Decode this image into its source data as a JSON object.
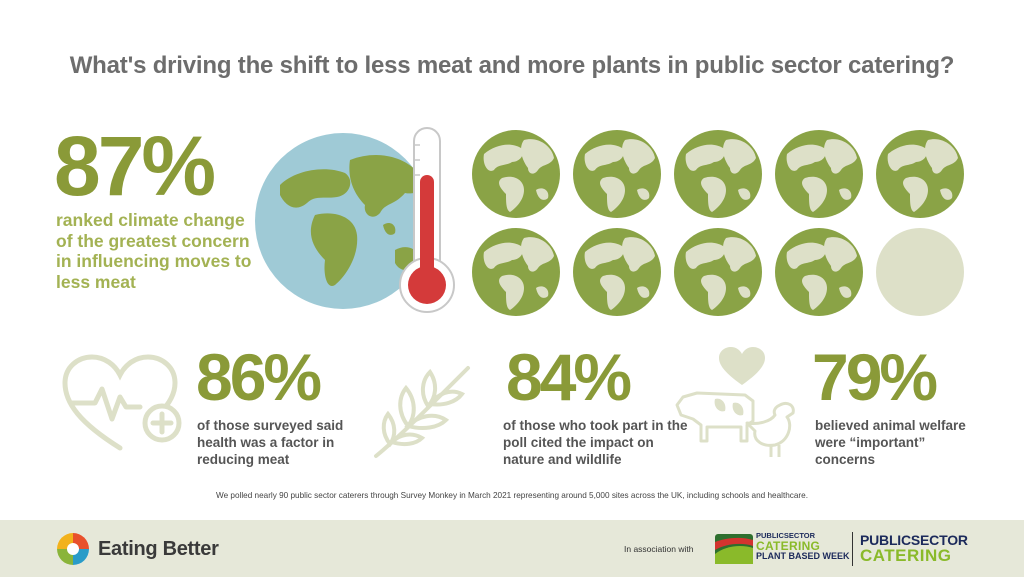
{
  "title": "What's driving the shift to less meat and more plants in public sector catering?",
  "stats": [
    {
      "value": "87%",
      "text": "ranked climate change of the greatest concern in influencing moves to less meat",
      "icon": "globe-thermometer-icon"
    },
    {
      "value": "86%",
      "text": "of those surveyed said health was a factor in reducing meat",
      "icon": "heart-health-icon"
    },
    {
      "value": "84%",
      "text": "of those who took part in the poll cited the impact on nature and wildlife",
      "icon": "leaf-branch-icon"
    },
    {
      "value": "79%",
      "text": "believed animal welfare were “important” concerns",
      "icon": "farm-animals-icon"
    }
  ],
  "globe_grid": {
    "filled": 9,
    "total": 10
  },
  "footnote": "We polled nearly 90 public sector caterers through Survey Monkey in March 2021 representing around 5,000 sites across the UK, including schools and healthcare.",
  "footer": {
    "brand": "Eating Better",
    "association": "In association with",
    "partner1": {
      "line1": "PUBLICSECTOR",
      "line2": "CATERING",
      "line3": "PLANT BASED WEEK"
    },
    "partner2": {
      "line1": "PUBLICSECTOR",
      "line2": "CATERING"
    }
  },
  "colors": {
    "green": "#8a9a38",
    "light_green": "#a3b253",
    "globe_ocean": "#9fcad6",
    "globe_land": "#8aa346",
    "pale": "#dde0c8"
  }
}
